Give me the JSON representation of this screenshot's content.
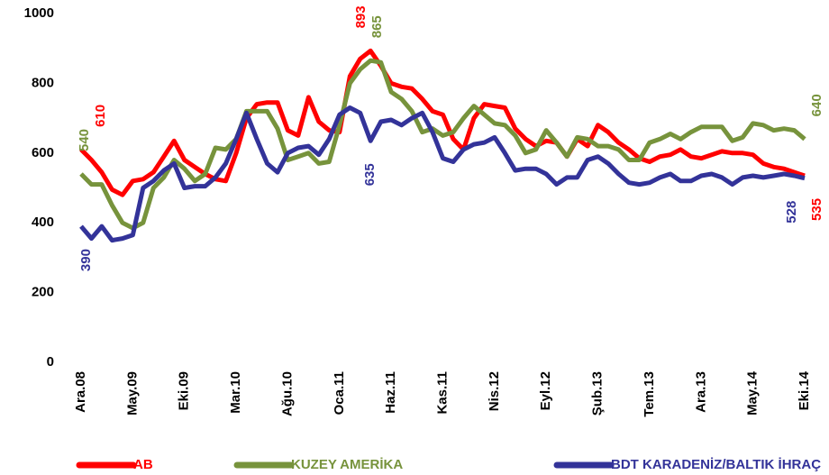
{
  "chart_data": {
    "type": "line",
    "categories": [
      "Ara.08",
      null,
      null,
      null,
      null,
      "May.09",
      null,
      null,
      null,
      null,
      "Eki.09",
      null,
      null,
      null,
      null,
      "Mar.10",
      null,
      null,
      null,
      null,
      "Ağu.10",
      null,
      null,
      null,
      null,
      "Oca.11",
      null,
      null,
      null,
      null,
      "Haz.11",
      null,
      null,
      null,
      null,
      "Kas.11",
      null,
      null,
      null,
      null,
      "Nis.12",
      null,
      null,
      null,
      null,
      "Eyl.12",
      null,
      null,
      null,
      null,
      "Şub.13",
      null,
      null,
      null,
      null,
      "Tem.13",
      null,
      null,
      null,
      null,
      "Ara.13",
      null,
      null,
      null,
      null,
      "May.14",
      null,
      null,
      null,
      null,
      "Eki.14"
    ],
    "series": [
      {
        "name": "AB",
        "color": "#ff0000",
        "label_indices": [
          0,
          28,
          70
        ],
        "values": [
          610,
          580,
          545,
          495,
          480,
          520,
          525,
          545,
          590,
          635,
          580,
          560,
          540,
          525,
          520,
          600,
          700,
          740,
          745,
          745,
          665,
          650,
          760,
          690,
          665,
          660,
          820,
          870,
          893,
          850,
          800,
          790,
          785,
          755,
          720,
          710,
          640,
          610,
          700,
          740,
          735,
          730,
          670,
          640,
          620,
          635,
          630,
          590,
          640,
          620,
          680,
          660,
          630,
          610,
          585,
          575,
          590,
          595,
          610,
          590,
          585,
          595,
          605,
          600,
          600,
          595,
          570,
          560,
          555,
          545,
          535
        ]
      },
      {
        "name": "KUZEY AMERİKA",
        "color": "#77933c",
        "label_indices": [
          0,
          28,
          70
        ],
        "values": [
          540,
          510,
          510,
          450,
          400,
          385,
          400,
          500,
          530,
          580,
          555,
          520,
          540,
          615,
          610,
          640,
          720,
          720,
          720,
          670,
          580,
          590,
          600,
          570,
          575,
          680,
          800,
          840,
          865,
          860,
          775,
          755,
          720,
          660,
          670,
          650,
          660,
          700,
          735,
          710,
          685,
          680,
          650,
          600,
          610,
          665,
          630,
          590,
          645,
          640,
          620,
          620,
          610,
          580,
          580,
          630,
          640,
          655,
          640,
          660,
          675,
          675,
          675,
          635,
          645,
          685,
          680,
          665,
          670,
          665,
          640
        ]
      },
      {
        "name": "BDT KARADENİZ/BALTIK İHRAÇ",
        "color": "#333399",
        "label_indices": [
          0,
          28,
          70
        ],
        "values": [
          390,
          355,
          390,
          350,
          355,
          365,
          500,
          520,
          550,
          570,
          500,
          505,
          505,
          530,
          570,
          640,
          715,
          640,
          570,
          545,
          600,
          615,
          620,
          595,
          640,
          710,
          730,
          715,
          635,
          690,
          695,
          680,
          700,
          715,
          660,
          585,
          575,
          610,
          625,
          630,
          645,
          600,
          550,
          555,
          555,
          540,
          510,
          530,
          530,
          580,
          590,
          570,
          540,
          515,
          510,
          515,
          530,
          540,
          520,
          520,
          535,
          540,
          530,
          510,
          530,
          535,
          530,
          535,
          540,
          535,
          528
        ]
      }
    ],
    "ylim": [
      0,
      1000
    ],
    "yticks": [
      0,
      200,
      400,
      600,
      800,
      1000
    ],
    "grid": false,
    "legend": "bottom"
  }
}
